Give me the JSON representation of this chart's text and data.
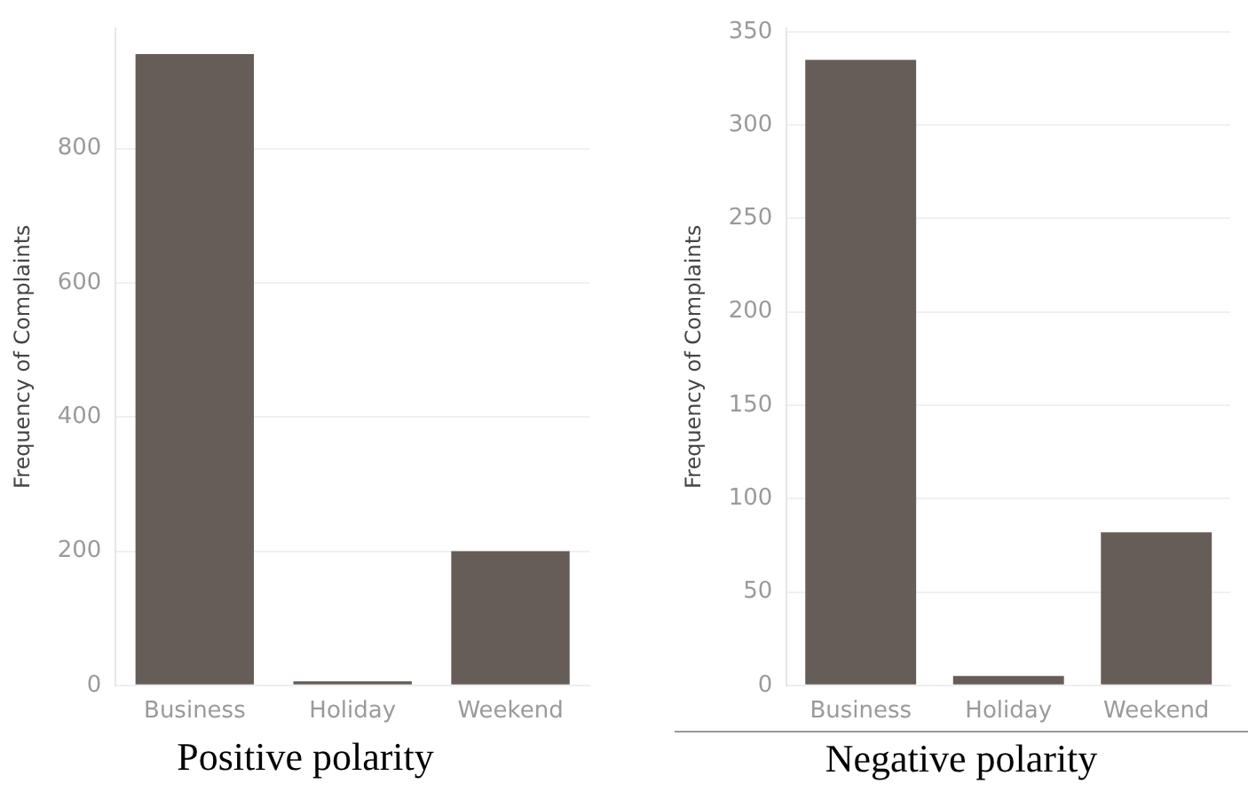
{
  "chart_data": [
    {
      "type": "bar",
      "title": "Positive polarity",
      "ylabel": "Frequency of Complaints",
      "categories": [
        "Business",
        "Holiday",
        "Weekend"
      ],
      "values": [
        941,
        6,
        200
      ],
      "color": "#665c58",
      "ylim": [
        0,
        980
      ],
      "yticks": [
        0,
        200,
        400,
        600,
        800
      ],
      "grid": "y",
      "legend": false
    },
    {
      "type": "bar",
      "title": "Negative polarity",
      "ylabel": "Frequency of Complaints",
      "categories": [
        "Business",
        "Holiday",
        "Weekend"
      ],
      "values": [
        335,
        5,
        82
      ],
      "color": "#665c58",
      "ylim": [
        0,
        352
      ],
      "yticks": [
        0,
        50,
        100,
        150,
        200,
        250,
        300,
        350
      ],
      "grid": "y",
      "legend": false
    }
  ]
}
